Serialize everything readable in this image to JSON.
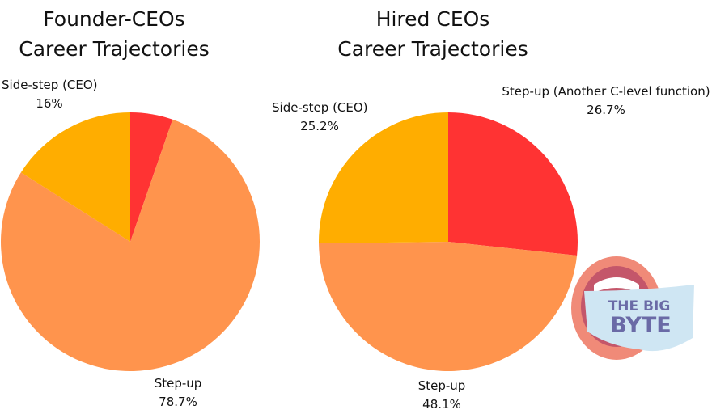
{
  "chart_data": [
    {
      "type": "pie",
      "title_lines": [
        "Founder-CEOs",
        "Career Trajectories"
      ],
      "slices": [
        {
          "name": "Step-up (Another C-level function)",
          "value": 5.3,
          "color": "#ff3333",
          "label": "",
          "pct": ""
        },
        {
          "name": "Step-up",
          "value": 78.7,
          "color": "#ff944d",
          "label": "Step-up",
          "pct": "78.7%"
        },
        {
          "name": "Side-step (CEO)",
          "value": 16,
          "color": "#ffad00",
          "label": "Side-step (CEO)",
          "pct": "16%"
        }
      ]
    },
    {
      "type": "pie",
      "title_lines": [
        "Hired CEOs",
        "Career Trajectories"
      ],
      "slices": [
        {
          "name": "Step-up (Another C-level function)",
          "value": 26.7,
          "color": "#ff3333",
          "label": "Step-up (Another C-level function)",
          "pct": "26.7%"
        },
        {
          "name": "Step-up",
          "value": 48.1,
          "color": "#ff944d",
          "label": "Step-up",
          "pct": "48.1%"
        },
        {
          "name": "Side-step (CEO)",
          "value": 25.2,
          "color": "#ffad00",
          "label": "Side-step (CEO)",
          "pct": "25.2%"
        }
      ]
    }
  ],
  "logo": {
    "line1": "THE BIG",
    "line2": "BYTE"
  }
}
